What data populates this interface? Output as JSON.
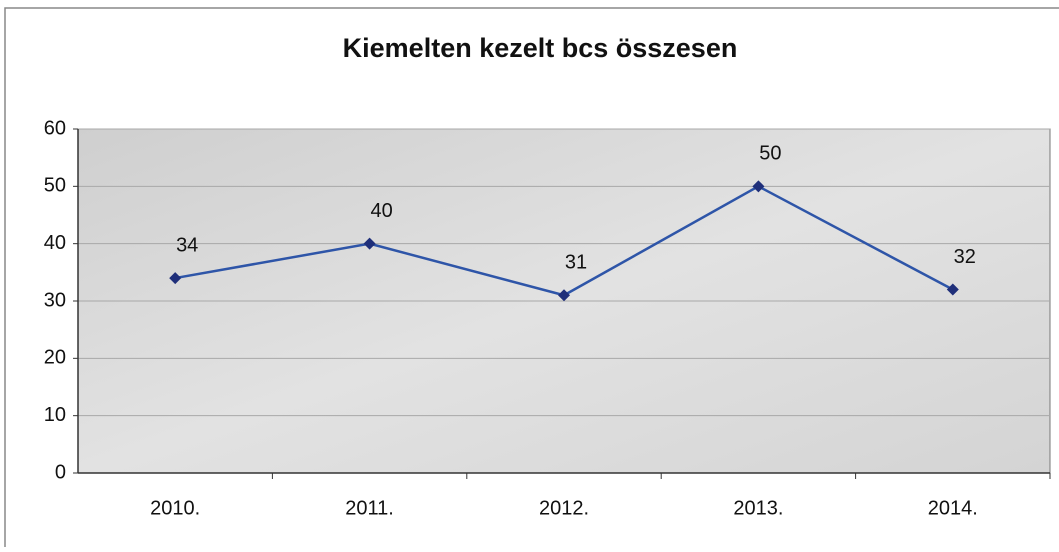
{
  "chart_data": {
    "type": "line",
    "title": "Kiemelten kezelt bcs összesen",
    "categories": [
      "2010.",
      "2011.",
      "2012.",
      "2013.",
      "2014."
    ],
    "series": [
      {
        "name": "Kiemelten kezelt bcs összesen",
        "color": "#2e55a8",
        "marker_color": "#1f2f7a",
        "values": [
          34,
          40,
          31,
          50,
          32
        ]
      }
    ],
    "ylim": [
      0,
      60
    ],
    "yticks": [
      0,
      10,
      20,
      30,
      40,
      50,
      60
    ],
    "grid": true,
    "legend": false
  }
}
